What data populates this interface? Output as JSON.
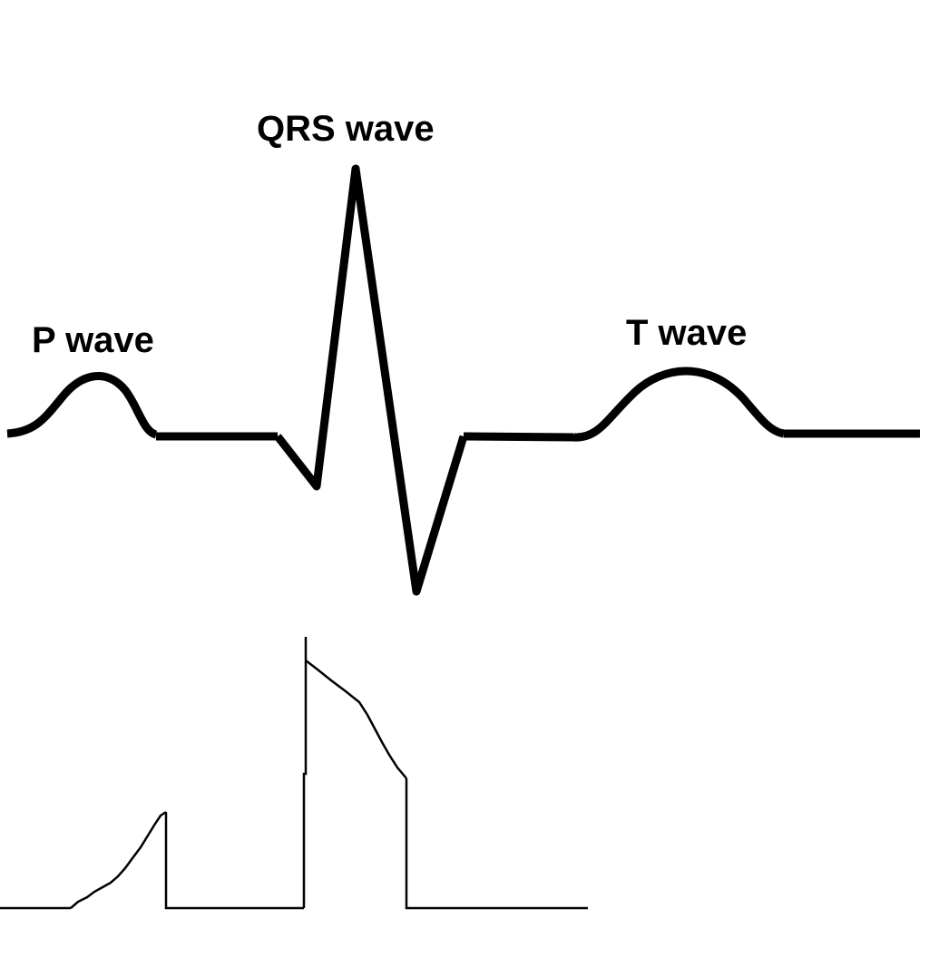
{
  "labels": {
    "p_wave": "P wave",
    "qrs_wave": "QRS wave",
    "t_wave": "T wave"
  },
  "colors": {
    "background": "#ffffff",
    "trace": "#000000"
  }
}
